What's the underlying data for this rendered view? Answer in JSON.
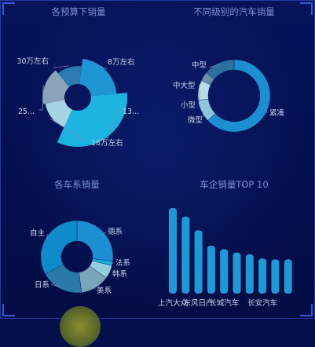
{
  "colors": {
    "background": "#050f4a",
    "title": "#7c93d4",
    "label": "#c8d2ec",
    "leader": "#7f8fb5",
    "bar": "#1c9ad6"
  },
  "chart_data": [
    {
      "type": "pie",
      "variant": "rose",
      "title": "各预算下销量",
      "slices": [
        {
          "label": "8万左右",
          "value": 40
        },
        {
          "label": "13...",
          "value": 62
        },
        {
          "label": "18万左右",
          "value": 28
        },
        {
          "label": "25...",
          "value": 32
        },
        {
          "label": "30万左右",
          "value": 24
        }
      ]
    },
    {
      "type": "pie",
      "variant": "donut",
      "title": "不同级别的汽车销量",
      "slices": [
        {
          "label": "紧凑",
          "value": 63
        },
        {
          "label": "微型",
          "value": 10
        },
        {
          "label": "小型",
          "value": 9
        },
        {
          "label": "中大型",
          "value": 4
        },
        {
          "label": "中型",
          "value": 14
        }
      ]
    },
    {
      "type": "pie",
      "variant": "donut",
      "title": "各车系销量",
      "slices": [
        {
          "label": "德系",
          "value": 27
        },
        {
          "label": "法系",
          "value": 2
        },
        {
          "label": "韩系",
          "value": 6
        },
        {
          "label": "美系",
          "value": 13
        },
        {
          "label": "日系",
          "value": 19
        },
        {
          "label": "自主",
          "value": 33
        }
      ]
    },
    {
      "type": "bar",
      "title": "车企销量TOP 10",
      "categories": [
        "上汽大众",
        "",
        "东风日产",
        "",
        "长城汽车",
        "",
        "",
        "长安汽车",
        "",
        ""
      ],
      "values": [
        100,
        90,
        74,
        56,
        52,
        48,
        46,
        41,
        40,
        40
      ],
      "ylim": [
        0,
        100
      ]
    }
  ]
}
